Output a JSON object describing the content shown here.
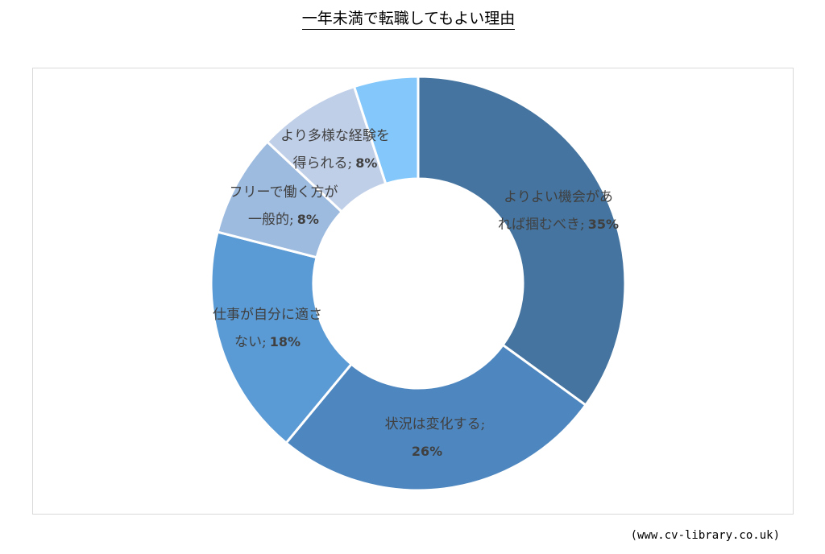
{
  "chart_data": {
    "type": "pie",
    "title": "一年未満で転職してもよい理由",
    "slices": [
      {
        "line1": "よりよい機会があ",
        "line2_text": "れば掴むべき",
        "percent_label": "35%",
        "value": 35,
        "color": "#44749f"
      },
      {
        "line1": "状況は変化する;",
        "line2_text": "",
        "percent_label": "26%",
        "value": 26,
        "color": "#4e87c0"
      },
      {
        "line1": "仕事が自分に適さ",
        "line2_text": "ない",
        "percent_label": "18%",
        "value": 18,
        "color": "#5b9bd5"
      },
      {
        "line1": "フリーで働く方が",
        "line2_text": "一般的",
        "percent_label": "8%",
        "value": 8,
        "color": "#9dbadf"
      },
      {
        "line1": "より多様な経験を",
        "line2_text": "得られる",
        "percent_label": "8%",
        "value": 8,
        "color": "#c0cfe8"
      },
      {
        "line1": "",
        "line2_text": "",
        "percent_label": "",
        "value": 5,
        "color": "#84c8fb"
      }
    ]
  },
  "source": "(www.cv-library.co.uk)"
}
